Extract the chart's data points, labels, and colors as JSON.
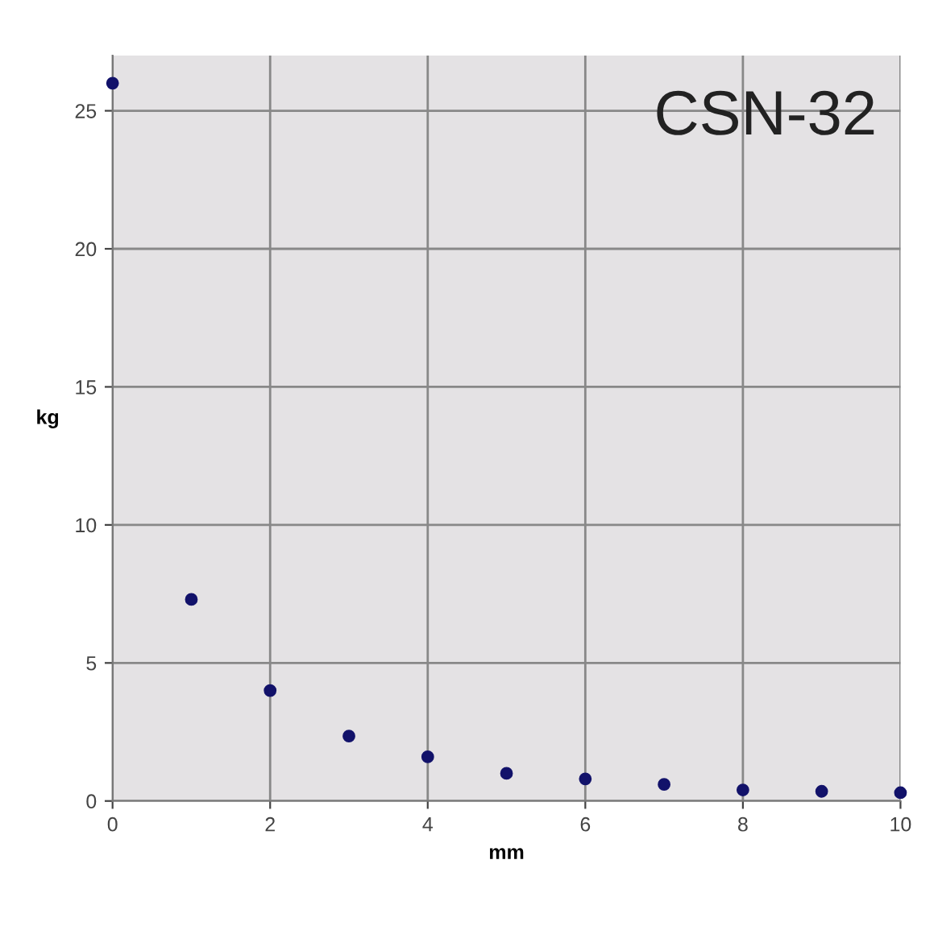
{
  "chart_data": {
    "type": "scatter",
    "title": "CSN-32",
    "xlabel": "mm",
    "ylabel": "kg",
    "x": [
      0,
      1,
      2,
      3,
      4,
      5,
      6,
      7,
      8,
      9,
      10
    ],
    "series": [
      {
        "color": "#12126a",
        "values": [
          26,
          7.3,
          4.0,
          2.35,
          1.6,
          1.0,
          0.8,
          0.6,
          0.4,
          0.35,
          0.3
        ]
      }
    ],
    "xlim": [
      0,
      10
    ],
    "ylim": [
      0,
      27
    ],
    "xticks": [
      0,
      2,
      4,
      6,
      8,
      10
    ],
    "yticks": [
      0,
      5,
      10,
      15,
      20,
      25
    ],
    "grid": true,
    "marker": "circle"
  }
}
